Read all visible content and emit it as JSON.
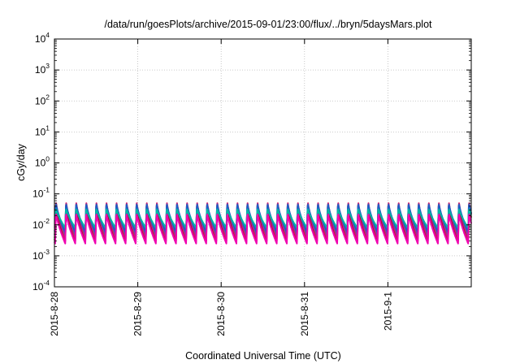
{
  "chart_data": {
    "type": "line",
    "title": "/data/run/goesPlots/archive/2015-09-01/23:00/flux/../bryn/5daysMars.plot",
    "xlabel": "Coordinated Universal Time (UTC)",
    "ylabel": "cGy/day",
    "y_scale": "log",
    "ylim": [
      0.0001,
      10000
    ],
    "y_ticks": [
      {
        "value": 0.0001,
        "base": "10",
        "exp": "-4"
      },
      {
        "value": 0.001,
        "base": "10",
        "exp": "-3"
      },
      {
        "value": 0.01,
        "base": "10",
        "exp": "-2"
      },
      {
        "value": 0.1,
        "base": "10",
        "exp": "-1"
      },
      {
        "value": 1,
        "base": "10",
        "exp": "0"
      },
      {
        "value": 10,
        "base": "10",
        "exp": "1"
      },
      {
        "value": 100,
        "base": "10",
        "exp": "2"
      },
      {
        "value": 1000,
        "base": "10",
        "exp": "3"
      },
      {
        "value": 10000,
        "base": "10",
        "exp": "4"
      }
    ],
    "xlim": [
      "2015-08-28",
      "2015-09-02"
    ],
    "x_ticks": [
      "2015-8-28",
      "2015-8-29",
      "2015-8-30",
      "2015-8-31",
      "2015-9-1"
    ],
    "grid": true,
    "period_hours": 2.9,
    "cycle_phase_hours": 0.2,
    "series": [
      {
        "color": "#8b1a1a",
        "peak": 0.045,
        "trough": 0.003
      },
      {
        "color": "#d81b60",
        "peak": 0.06,
        "trough": 0.0035
      },
      {
        "color": "#7b3fa0",
        "peak": 0.055,
        "trough": 0.0045
      },
      {
        "color": "#1b5fc4",
        "peak": 0.05,
        "trough": 0.006
      },
      {
        "color": "#00b3a4",
        "peak": 0.035,
        "trough": 0.008
      },
      {
        "color": "#f000b0",
        "peak": 0.025,
        "trough": 0.0025
      }
    ]
  }
}
